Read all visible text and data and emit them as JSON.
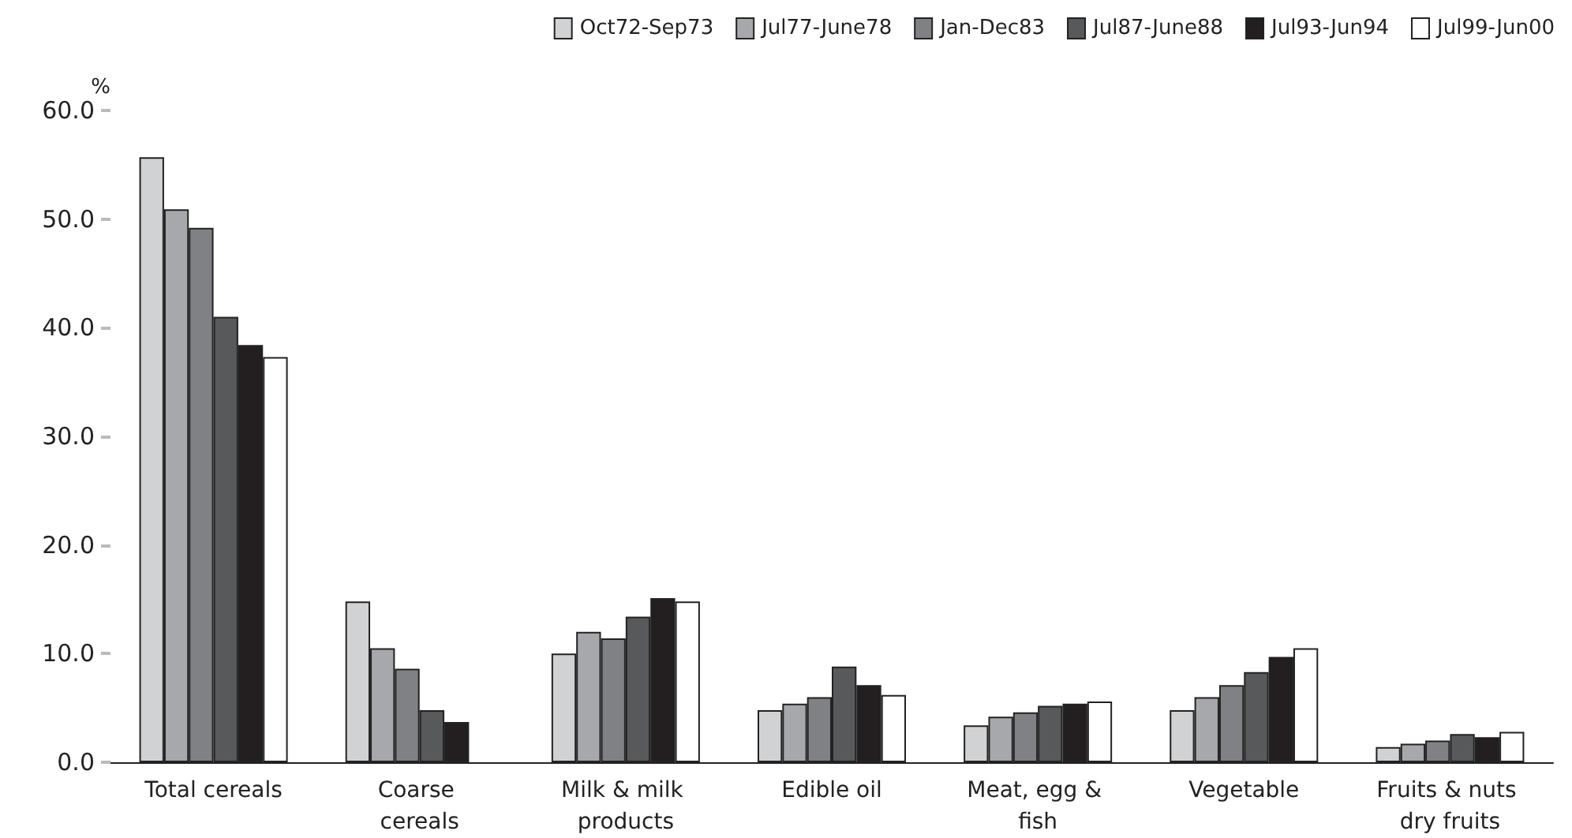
{
  "chart_data": {
    "type": "bar",
    "ylabel": "%",
    "categories": [
      "Total cereals",
      "Coarse cereals",
      "Milk & milk products",
      "Edible oil",
      "Meat, egg & fish",
      "Vegetable",
      "Fruits & nuts dry fruits"
    ],
    "series": [
      {
        "name": "Oct72-Sep73",
        "color": "#d1d2d4",
        "values": [
          55.7,
          14.8,
          10.0,
          4.8,
          3.4,
          4.8,
          1.4
        ]
      },
      {
        "name": "Jul77-June78",
        "color": "#a7a8ab",
        "values": [
          50.9,
          10.5,
          12.0,
          5.4,
          4.2,
          6.0,
          1.7
        ]
      },
      {
        "name": "Jan-Dec83",
        "color": "#808184",
        "values": [
          49.2,
          8.6,
          11.4,
          6.0,
          4.6,
          7.1,
          2.0
        ]
      },
      {
        "name": "Jul87-June88",
        "color": "#58595b",
        "values": [
          41.0,
          4.8,
          13.4,
          8.8,
          5.2,
          8.3,
          2.6
        ]
      },
      {
        "name": "Jul93-Jun94",
        "color": "#231f20",
        "values": [
          38.4,
          3.7,
          15.1,
          7.1,
          5.4,
          9.7,
          2.3
        ]
      },
      {
        "name": "Jul99-Jun00",
        "color": "#ffffff",
        "values": [
          37.3,
          null,
          14.8,
          6.2,
          5.6,
          10.5,
          2.8
        ]
      }
    ],
    "ylim": [
      0,
      60
    ],
    "yticks": [
      {
        "value": 0,
        "label": "0.0"
      },
      {
        "value": 10,
        "label": "10.0"
      },
      {
        "value": 20,
        "label": "20.0"
      },
      {
        "value": 30,
        "label": "30.0"
      },
      {
        "value": 40,
        "label": "40.0"
      },
      {
        "value": 50,
        "label": "50.0"
      },
      {
        "value": 60,
        "label": "60.0"
      }
    ],
    "grid": false,
    "legend": "top right"
  }
}
